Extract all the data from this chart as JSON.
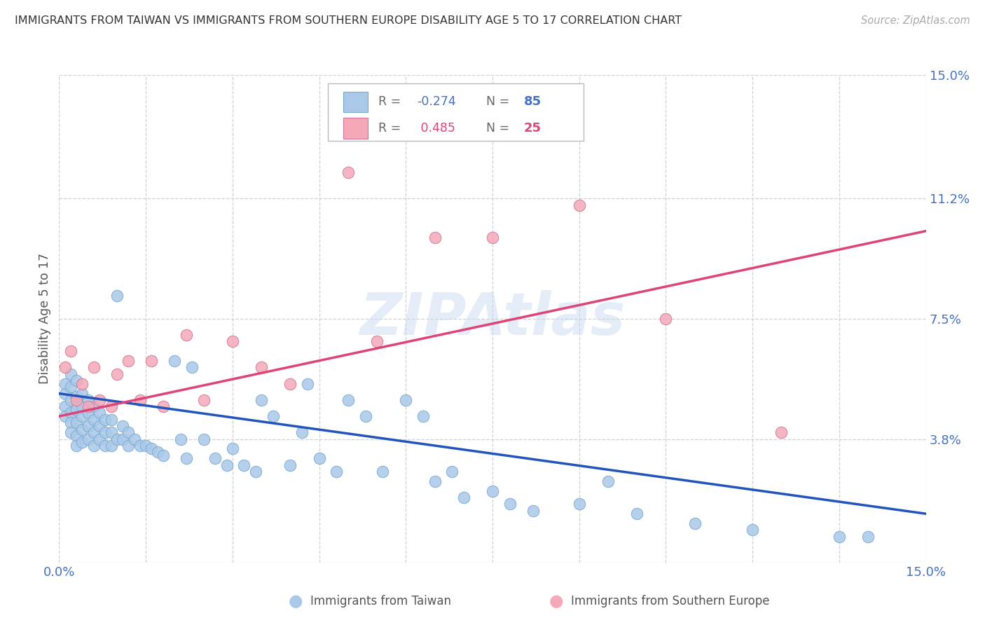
{
  "title": "IMMIGRANTS FROM TAIWAN VS IMMIGRANTS FROM SOUTHERN EUROPE DISABILITY AGE 5 TO 17 CORRELATION CHART",
  "source": "Source: ZipAtlas.com",
  "ylabel": "Disability Age 5 to 17",
  "xlim": [
    0.0,
    0.15
  ],
  "ylim": [
    0.0,
    0.15
  ],
  "ytick_vals": [
    0.0,
    0.038,
    0.075,
    0.112,
    0.15
  ],
  "ytick_labels": [
    "",
    "3.8%",
    "7.5%",
    "11.2%",
    "15.0%"
  ],
  "xtick_vals": [
    0.0,
    0.015,
    0.03,
    0.045,
    0.06,
    0.075,
    0.09,
    0.105,
    0.12,
    0.135,
    0.15
  ],
  "xtick_labels": [
    "0.0%",
    "",
    "",
    "",
    "",
    "",
    "",
    "",
    "",
    "",
    "15.0%"
  ],
  "color_taiwan": "#aac8e8",
  "color_taiwan_edge": "#7aaad0",
  "color_southern": "#f5a8b8",
  "color_southern_edge": "#d07898",
  "trendline_taiwan": "#2255bb",
  "trendline_southern": "#dd4477",
  "legend_R1": "-0.274",
  "legend_N1": "85",
  "legend_R2": "0.485",
  "legend_N2": "25",
  "watermark": "ZIPAtlas",
  "bg_color": "#ffffff",
  "grid_color": "#cccccc",
  "tw_trend_x0": 0.0,
  "tw_trend_y0": 0.052,
  "tw_trend_x1": 0.15,
  "tw_trend_y1": 0.015,
  "so_trend_x0": 0.0,
  "so_trend_y0": 0.045,
  "so_trend_x1": 0.15,
  "so_trend_y1": 0.102,
  "taiwan_x": [
    0.001,
    0.001,
    0.001,
    0.001,
    0.002,
    0.002,
    0.002,
    0.002,
    0.002,
    0.002,
    0.003,
    0.003,
    0.003,
    0.003,
    0.003,
    0.003,
    0.004,
    0.004,
    0.004,
    0.004,
    0.004,
    0.005,
    0.005,
    0.005,
    0.005,
    0.006,
    0.006,
    0.006,
    0.006,
    0.007,
    0.007,
    0.007,
    0.008,
    0.008,
    0.008,
    0.009,
    0.009,
    0.009,
    0.01,
    0.01,
    0.011,
    0.011,
    0.012,
    0.012,
    0.013,
    0.014,
    0.015,
    0.016,
    0.017,
    0.018,
    0.02,
    0.021,
    0.022,
    0.023,
    0.025,
    0.027,
    0.029,
    0.03,
    0.032,
    0.034,
    0.035,
    0.037,
    0.04,
    0.042,
    0.043,
    0.045,
    0.048,
    0.05,
    0.053,
    0.056,
    0.06,
    0.063,
    0.065,
    0.068,
    0.07,
    0.075,
    0.078,
    0.082,
    0.09,
    0.095,
    0.1,
    0.11,
    0.12,
    0.135,
    0.14
  ],
  "taiwan_y": [
    0.055,
    0.052,
    0.048,
    0.045,
    0.058,
    0.054,
    0.05,
    0.046,
    0.043,
    0.04,
    0.056,
    0.051,
    0.047,
    0.043,
    0.039,
    0.036,
    0.052,
    0.048,
    0.045,
    0.041,
    0.037,
    0.05,
    0.046,
    0.042,
    0.038,
    0.048,
    0.044,
    0.04,
    0.036,
    0.046,
    0.042,
    0.038,
    0.044,
    0.04,
    0.036,
    0.044,
    0.04,
    0.036,
    0.082,
    0.038,
    0.042,
    0.038,
    0.04,
    0.036,
    0.038,
    0.036,
    0.036,
    0.035,
    0.034,
    0.033,
    0.062,
    0.038,
    0.032,
    0.06,
    0.038,
    0.032,
    0.03,
    0.035,
    0.03,
    0.028,
    0.05,
    0.045,
    0.03,
    0.04,
    0.055,
    0.032,
    0.028,
    0.05,
    0.045,
    0.028,
    0.05,
    0.045,
    0.025,
    0.028,
    0.02,
    0.022,
    0.018,
    0.016,
    0.018,
    0.025,
    0.015,
    0.012,
    0.01,
    0.008,
    0.008
  ],
  "southern_x": [
    0.001,
    0.002,
    0.003,
    0.004,
    0.005,
    0.006,
    0.007,
    0.009,
    0.01,
    0.012,
    0.014,
    0.016,
    0.018,
    0.022,
    0.025,
    0.03,
    0.035,
    0.04,
    0.05,
    0.055,
    0.065,
    0.075,
    0.09,
    0.105,
    0.125
  ],
  "southern_y": [
    0.06,
    0.065,
    0.05,
    0.055,
    0.048,
    0.06,
    0.05,
    0.048,
    0.058,
    0.062,
    0.05,
    0.062,
    0.048,
    0.07,
    0.05,
    0.068,
    0.06,
    0.055,
    0.12,
    0.068,
    0.1,
    0.1,
    0.11,
    0.075,
    0.04
  ]
}
